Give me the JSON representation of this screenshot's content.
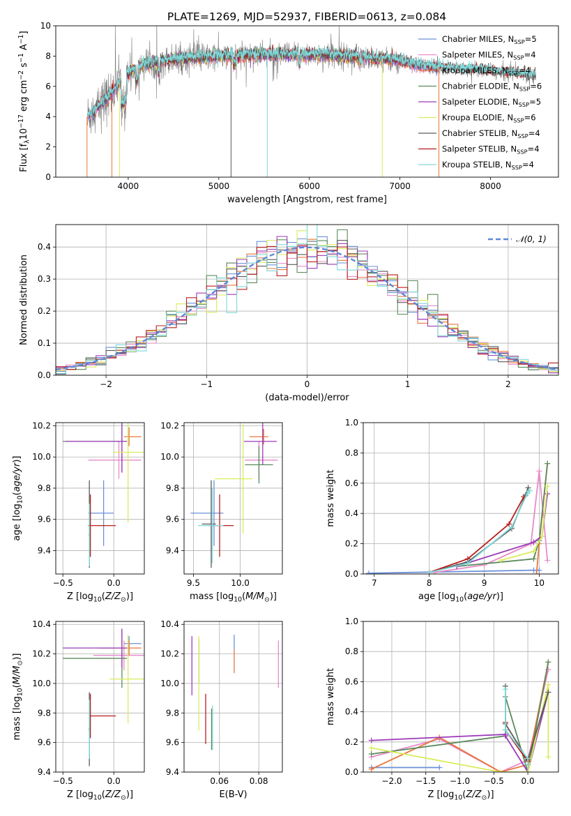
{
  "figure_title": "PLATE=1269, MJD=52937, FIBERID=0613, z=0.084",
  "palette": {
    "Chabrier MILES": "#6a8fd8",
    "Salpeter MILES": "#e88aca",
    "Kroupa MILES": "#e8763a",
    "Chabrier ELODIE": "#5c8a5c",
    "Salpeter ELODIE": "#9b3ab8",
    "Kroupa ELODIE": "#d9ec5a",
    "Chabrier STELIB": "#5a5a5a",
    "Salpeter STELIB": "#b81e1e",
    "Kroupa STELIB": "#7fd8d8",
    "data": "#7a7a7a",
    "gaussian": "#5f86d8"
  },
  "chart_data": [
    {
      "type": "line",
      "title": "PLATE=1269, MJD=52937, FIBERID=0613, z=0.084",
      "xlabel": "wavelength [Angstrom, rest frame]",
      "ylabel": "Flux [f_λ 10^-17 erg cm^-2 s^-1 A^-1]",
      "xlim": [
        3200,
        8750
      ],
      "ylim": [
        0,
        10
      ],
      "xticks": [
        4000,
        5000,
        6000,
        7000,
        8000
      ],
      "yticks": [
        0,
        2,
        4,
        6,
        8,
        10
      ],
      "legend_position": "right",
      "series": [
        {
          "name": "Chabrier MILES, N_SSP=5"
        },
        {
          "name": "Salpeter MILES, N_SSP=4"
        },
        {
          "name": "Kroupa MILES, N_SSP=4"
        },
        {
          "name": "Chabrier ELODIE, N_SSP=6"
        },
        {
          "name": "Salpeter ELODIE, N_SSP=5"
        },
        {
          "name": "Kroupa ELODIE, N_SSP=6"
        },
        {
          "name": "Chabrier STELIB, N_SSP=4"
        },
        {
          "name": "Salpeter STELIB, N_SSP=4"
        },
        {
          "name": "Kroupa STELIB, N_SSP=4"
        }
      ],
      "spectrum_envelope": {
        "x": [
          3550,
          3700,
          3800,
          3900,
          4000,
          4200,
          4500,
          4800,
          5000,
          5500,
          6000,
          6500,
          7000,
          7200,
          7500,
          8000,
          8500
        ],
        "y": [
          4.0,
          4.8,
          5.4,
          6.2,
          6.9,
          7.5,
          7.8,
          7.9,
          8.0,
          8.1,
          8.1,
          8.0,
          7.7,
          7.4,
          7.2,
          7.0,
          6.7
        ]
      }
    },
    {
      "type": "step-histogram",
      "xlabel": "(data-model)/error",
      "ylabel": "Normed distribution",
      "xlim": [
        -2.5,
        2.5
      ],
      "ylim": [
        0,
        0.47
      ],
      "xticks": [
        -2,
        -1,
        0,
        1,
        2
      ],
      "yticks": [
        0.0,
        0.1,
        0.2,
        0.3,
        0.4
      ],
      "bin_width": 0.1,
      "reference_curve": "normal pdf, mean 0, sigma 1",
      "legend": "𝒩(0, 1)",
      "legend_position": "top-right",
      "peak_values": {
        "min": 0.37,
        "max": 0.455
      }
    },
    {
      "type": "errorbar",
      "xlabel": "Z [log10(Z/Z☉)]",
      "ylabel": "age [log10(age/yr)]",
      "xlim": [
        -0.57,
        0.3
      ],
      "ylim": [
        9.25,
        10.22
      ],
      "xticks": [
        -0.5,
        0.0
      ],
      "yticks": [
        9.4,
        9.6,
        9.8,
        10.0,
        10.2
      ],
      "points": [
        {
          "model": "Chabrier MILES",
          "x": -0.1,
          "xerr": [
            0.15,
            0.1
          ],
          "y": 9.64,
          "yerr": 0.21
        },
        {
          "model": "Salpeter MILES",
          "x": 0.05,
          "xerr": [
            0.3,
            0.22
          ],
          "y": 9.98,
          "yerr": 0.12
        },
        {
          "model": "Kroupa MILES",
          "x": 0.15,
          "xerr": [
            0.05,
            0.12
          ],
          "y": 10.13,
          "yerr": 0.06
        },
        {
          "model": "Chabrier ELODIE",
          "x": 0.08,
          "xerr": [
            0.58,
            0.05
          ],
          "y": 10.1,
          "yerr": 0.2
        },
        {
          "model": "Salpeter ELODIE",
          "x": 0.08,
          "xerr": [
            0.55,
            0.05
          ],
          "y": 10.1,
          "yerr": 0.2
        },
        {
          "model": "Kroupa ELODIE",
          "x": 0.14,
          "xerr": [
            0.15,
            0.2
          ],
          "y": 10.03,
          "yerr": 0.45
        },
        {
          "model": "Chabrier STELIB",
          "x": -0.24,
          "xerr": [
            0.0,
            0.0
          ],
          "y": 9.57,
          "yerr": 0.28
        },
        {
          "model": "Salpeter STELIB",
          "x": -0.23,
          "xerr": [
            0.02,
            0.25
          ],
          "y": 9.56,
          "yerr": 0.2
        },
        {
          "model": "Kroupa STELIB",
          "x": -0.24,
          "xerr": [
            0.01,
            0.0
          ],
          "y": 9.5,
          "yerr": 0.2
        }
      ]
    },
    {
      "type": "errorbar",
      "xlabel": "mass [log10(M/M☉)]",
      "ylabel": "",
      "xlim": [
        9.4,
        10.45
      ],
      "ylim": [
        9.25,
        10.22
      ],
      "xticks": [
        9.5,
        10.0
      ],
      "yticks": [
        9.4,
        9.6,
        9.8,
        10.0,
        10.2
      ],
      "points": [
        {
          "model": "Chabrier MILES",
          "x": 9.72,
          "xerr": [
            0.25,
            0.1
          ],
          "y": 9.64,
          "yerr": 0.21
        },
        {
          "model": "Salpeter MILES",
          "x": 10.2,
          "xerr": [
            0.15,
            0.2
          ],
          "y": 9.98,
          "yerr": 0.12
        },
        {
          "model": "Kroupa MILES",
          "x": 10.25,
          "xerr": [
            0.15,
            0.05
          ],
          "y": 10.13,
          "yerr": 0.05
        },
        {
          "model": "Chabrier ELODIE",
          "x": 10.2,
          "xerr": [
            0.15,
            0.15
          ],
          "y": 9.95,
          "yerr": 0.12
        },
        {
          "model": "Salpeter ELODIE",
          "x": 10.24,
          "xerr": [
            0.2,
            0.15
          ],
          "y": 10.1,
          "yerr": 0.15
        },
        {
          "model": "Kroupa ELODIE",
          "x": 10.03,
          "xerr": [
            0.3,
            0.1
          ],
          "y": 9.86,
          "yerr": 0.35
        },
        {
          "model": "Chabrier STELIB",
          "x": 9.69,
          "xerr": [
            0.1,
            0.05
          ],
          "y": 9.57,
          "yerr": 0.28
        },
        {
          "model": "Salpeter STELIB",
          "x": 9.78,
          "xerr": [
            0.12,
            0.15
          ],
          "y": 9.56,
          "yerr": 0.2
        },
        {
          "model": "Kroupa STELIB",
          "x": 9.7,
          "xerr": [
            0.15,
            0.12
          ],
          "y": 9.56,
          "yerr": 0.24
        }
      ]
    },
    {
      "type": "line",
      "xlabel": "age [log10(age/yr)]",
      "ylabel": "mass weight",
      "xlim": [
        6.8,
        10.35
      ],
      "ylim": [
        0,
        1
      ],
      "xticks": [
        7,
        8,
        9,
        10
      ],
      "yticks": [
        0.0,
        0.2,
        0.4,
        0.6,
        0.8,
        1.0
      ],
      "grid": true,
      "series": [
        {
          "model": "Chabrier MILES",
          "x": [
            6.9,
            9.9,
            10.0
          ],
          "y": [
            0.005,
            0.025,
            0.025
          ]
        },
        {
          "model": "Salpeter MILES",
          "x": [
            8.1,
            9.0,
            9.85,
            10.0,
            10.15
          ],
          "y": [
            0.01,
            0.06,
            0.2,
            0.68,
            0.09
          ]
        },
        {
          "model": "Kroupa MILES",
          "x": [
            9.95,
            10.0,
            10.15
          ],
          "y": [
            0.0,
            0.2,
            0.73
          ]
        },
        {
          "model": "Chabrier ELODIE",
          "x": [
            8.5,
            9.9,
            10.0,
            10.15
          ],
          "y": [
            0.05,
            0.1,
            0.22,
            0.73
          ]
        },
        {
          "model": "Salpeter ELODIE",
          "x": [
            8.5,
            9.9,
            10.05,
            10.15
          ],
          "y": [
            0.05,
            0.21,
            0.25,
            0.53
          ]
        },
        {
          "model": "Kroupa ELODIE",
          "x": [
            9.3,
            9.9,
            10.05,
            10.15
          ],
          "y": [
            0.09,
            0.15,
            0.25,
            0.58
          ]
        },
        {
          "model": "Chabrier STELIB",
          "x": [
            8.0,
            8.7,
            9.5,
            9.75,
            9.8
          ],
          "y": [
            0.01,
            0.08,
            0.3,
            0.52,
            0.57
          ]
        },
        {
          "model": "Salpeter STELIB",
          "x": [
            8.0,
            8.7,
            9.45,
            9.72
          ],
          "y": [
            0.01,
            0.1,
            0.33,
            0.51
          ]
        },
        {
          "model": "Kroupa STELIB",
          "x": [
            8.0,
            8.7,
            9.5,
            9.78,
            9.83
          ],
          "y": [
            0.01,
            0.07,
            0.31,
            0.53,
            0.55
          ]
        }
      ]
    },
    {
      "type": "errorbar",
      "xlabel": "Z [log10(Z/Z☉)]",
      "ylabel": "mass [log10(M/M☉)]",
      "xlim": [
        -0.57,
        0.3
      ],
      "ylim": [
        9.4,
        10.42
      ],
      "xticks": [
        -0.5,
        0.0
      ],
      "yticks": [
        9.4,
        9.6,
        9.8,
        10.0,
        10.2,
        10.4
      ],
      "points": [
        {
          "model": "Chabrier MILES",
          "x": 0.15,
          "xerr": [
            0.05,
            0.12
          ],
          "y": 10.27,
          "yerr": 0.05
        },
        {
          "model": "Salpeter MILES",
          "x": 0.1,
          "xerr": [
            0.3,
            0.2
          ],
          "y": 10.19,
          "yerr": 0.1
        },
        {
          "model": "Kroupa MILES",
          "x": 0.15,
          "xerr": [
            0.3,
            0.12
          ],
          "y": 10.24,
          "yerr": 0.05
        },
        {
          "model": "Chabrier ELODIE",
          "x": 0.08,
          "xerr": [
            0.58,
            0.05
          ],
          "y": 10.17,
          "yerr": 0.2
        },
        {
          "model": "Salpeter ELODIE",
          "x": 0.08,
          "xerr": [
            0.58,
            0.05
          ],
          "y": 10.24,
          "yerr": 0.13
        },
        {
          "model": "Kroupa ELODIE",
          "x": 0.14,
          "xerr": [
            0.18,
            0.2
          ],
          "y": 10.03,
          "yerr": 0.3
        },
        {
          "model": "Chabrier STELIB",
          "x": -0.24,
          "xerr": [
            0.01,
            0.0
          ],
          "y": 9.69,
          "yerr": 0.25
        },
        {
          "model": "Salpeter STELIB",
          "x": -0.23,
          "xerr": [
            0.01,
            0.25
          ],
          "y": 9.78,
          "yerr": 0.15
        },
        {
          "model": "Kroupa STELIB",
          "x": -0.24,
          "xerr": [
            0.01,
            0.0
          ],
          "y": 9.69,
          "yerr": 0.2
        }
      ]
    },
    {
      "type": "errorbar",
      "xlabel": "E(B-V)",
      "ylabel": "",
      "xlim": [
        0.042,
        0.092
      ],
      "ylim": [
        9.4,
        10.42
      ],
      "xticks": [
        0.06,
        0.08
      ],
      "yticks": [
        9.4,
        9.6,
        9.8,
        10.0,
        10.2,
        10.4
      ],
      "points": [
        {
          "model": "Salpeter ELODIE",
          "x": 0.046,
          "y": 10.12,
          "yerr": 0.2
        },
        {
          "model": "Chabrier STELIB",
          "x": 0.0495,
          "y": 10.15,
          "yerr": 0.15
        },
        {
          "model": "Kroupa ELODIE",
          "x": 0.0495,
          "y": 10.0,
          "yerr": 0.32
        },
        {
          "model": "Salpeter STELIB",
          "x": 0.053,
          "y": 9.76,
          "yerr": 0.17
        },
        {
          "model": "Chabrier ELODIE",
          "x": 0.056,
          "y": 9.69,
          "yerr": 0.14
        },
        {
          "model": "Kroupa STELIB",
          "x": 0.0565,
          "y": 9.7,
          "yerr": 0.15
        },
        {
          "model": "Chabrier MILES",
          "x": 0.0675,
          "y": 10.28,
          "yerr": 0.05
        },
        {
          "model": "Kroupa MILES",
          "x": 0.0675,
          "y": 10.15,
          "yerr": 0.08
        },
        {
          "model": "Salpeter MILES",
          "x": 0.09,
          "y": 10.13,
          "yerr": 0.16
        }
      ]
    },
    {
      "type": "line",
      "xlabel": "Z [log10(Z/Z☉)]",
      "ylabel": "mass weight",
      "xlim": [
        -2.42,
        0.45
      ],
      "ylim": [
        0,
        1
      ],
      "xticks": [
        -2.0,
        -1.5,
        -1.0,
        -0.5,
        0.0
      ],
      "yticks": [
        0.0,
        0.2,
        0.4,
        0.6,
        0.8,
        1.0
      ],
      "grid": true,
      "series": [
        {
          "model": "Chabrier MILES",
          "x": [
            -2.3,
            -1.3
          ],
          "y": [
            0.03,
            0.03
          ]
        },
        {
          "model": "Salpeter MILES",
          "x": [
            -2.3,
            -1.3,
            -0.4,
            0.0,
            0.3,
            0.3
          ],
          "y": [
            0.1,
            0.22,
            0.0,
            0.08,
            0.68,
            0.68
          ]
        },
        {
          "model": "Kroupa MILES",
          "x": [
            -2.3,
            -1.3,
            -0.4,
            0.0,
            0.3
          ],
          "y": [
            0.02,
            0.23,
            0.0,
            0.05,
            0.73
          ]
        },
        {
          "model": "Chabrier ELODIE",
          "x": [
            -2.3,
            -0.33,
            -0.33,
            0.0,
            0.3
          ],
          "y": [
            0.12,
            0.24,
            0.5,
            0.0,
            0.73
          ]
        },
        {
          "model": "Salpeter ELODIE",
          "x": [
            -2.3,
            -0.33,
            -0.33,
            0.0,
            0.3
          ],
          "y": [
            0.21,
            0.25,
            0.24,
            0.0,
            0.53
          ]
        },
        {
          "model": "Kroupa ELODIE",
          "x": [
            -2.3,
            -0.4,
            0.0,
            0.3,
            0.3
          ],
          "y": [
            0.16,
            0.0,
            0.0,
            0.58,
            0.1
          ]
        },
        {
          "model": "Chabrier STELIB",
          "x": [
            -0.33,
            -0.33,
            0.0,
            0.3
          ],
          "y": [
            0.57,
            0.32,
            0.08,
            0.53
          ]
        },
        {
          "model": "Salpeter STELIB",
          "x": [
            -0.33,
            -0.33,
            0.0
          ],
          "y": [
            0.33,
            0.28,
            0.07
          ]
        },
        {
          "model": "Kroupa STELIB",
          "x": [
            -0.33,
            -0.33,
            0.0,
            0.0
          ],
          "y": [
            0.55,
            0.28,
            0.09,
            0.05
          ]
        }
      ]
    }
  ]
}
